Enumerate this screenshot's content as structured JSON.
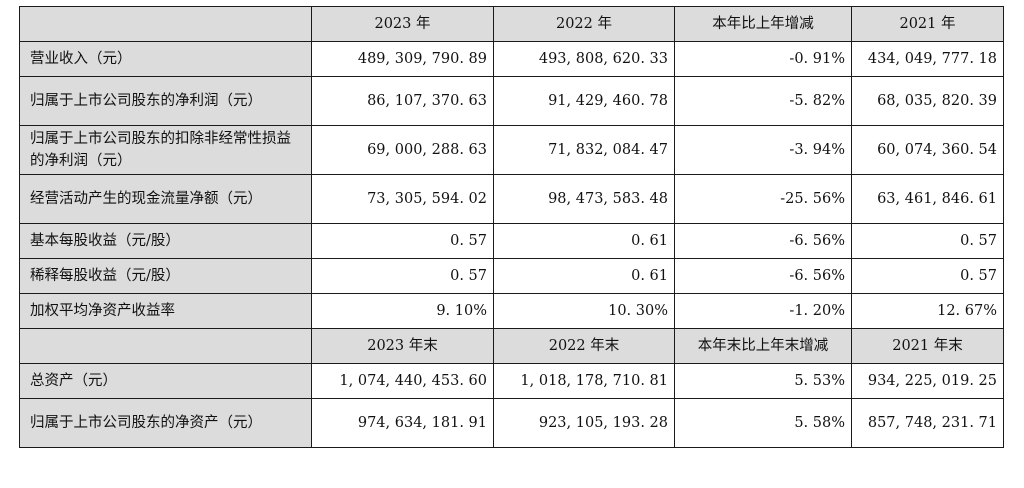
{
  "header1": [
    "2023 年",
    "2022 年",
    "本年比上年增减",
    "2021 年"
  ],
  "rows1": [
    {
      "label": "营业收入（元）",
      "v": [
        "489, 309, 790. 89",
        "493, 808, 620. 33",
        "-0. 91%",
        "434, 049, 777. 18"
      ]
    },
    {
      "label": "归属于上市公司股东的净利润（元）",
      "v": [
        "86, 107, 370. 63",
        "91, 429, 460. 78",
        "-5. 82%",
        "68, 035, 820. 39"
      ]
    },
    {
      "label": "归属于上市公司股东的扣除非经常性损益的净利润（元）",
      "v": [
        "69, 000, 288. 63",
        "71, 832, 084. 47",
        "-3. 94%",
        "60, 074, 360. 54"
      ]
    },
    {
      "label": "经营活动产生的现金流量净额（元）",
      "v": [
        "73, 305, 594. 02",
        "98, 473, 583. 48",
        "-25. 56%",
        "63, 461, 846. 61"
      ]
    },
    {
      "label": "基本每股收益（元/股）",
      "v": [
        "0. 57",
        "0. 61",
        "-6. 56%",
        "0. 57"
      ]
    },
    {
      "label": "稀释每股收益（元/股）",
      "v": [
        "0. 57",
        "0. 61",
        "-6. 56%",
        "0. 57"
      ]
    },
    {
      "label": "加权平均净资产收益率",
      "v": [
        "9. 10%",
        "10. 30%",
        "-1. 20%",
        "12. 67%"
      ]
    }
  ],
  "header2": [
    "2023 年末",
    "2022 年末",
    "本年末比上年末增减",
    "2021 年末"
  ],
  "rows2": [
    {
      "label": "总资产（元）",
      "v": [
        "1, 074, 440, 453. 60",
        "1, 018, 178, 710. 81",
        "5. 53%",
        "934, 225, 019. 25"
      ]
    },
    {
      "label": "归属于上市公司股东的净资产（元）",
      "v": [
        "974, 634, 181. 91",
        "923, 105, 193. 28",
        "5. 58%",
        "857, 748, 231. 71"
      ]
    }
  ]
}
